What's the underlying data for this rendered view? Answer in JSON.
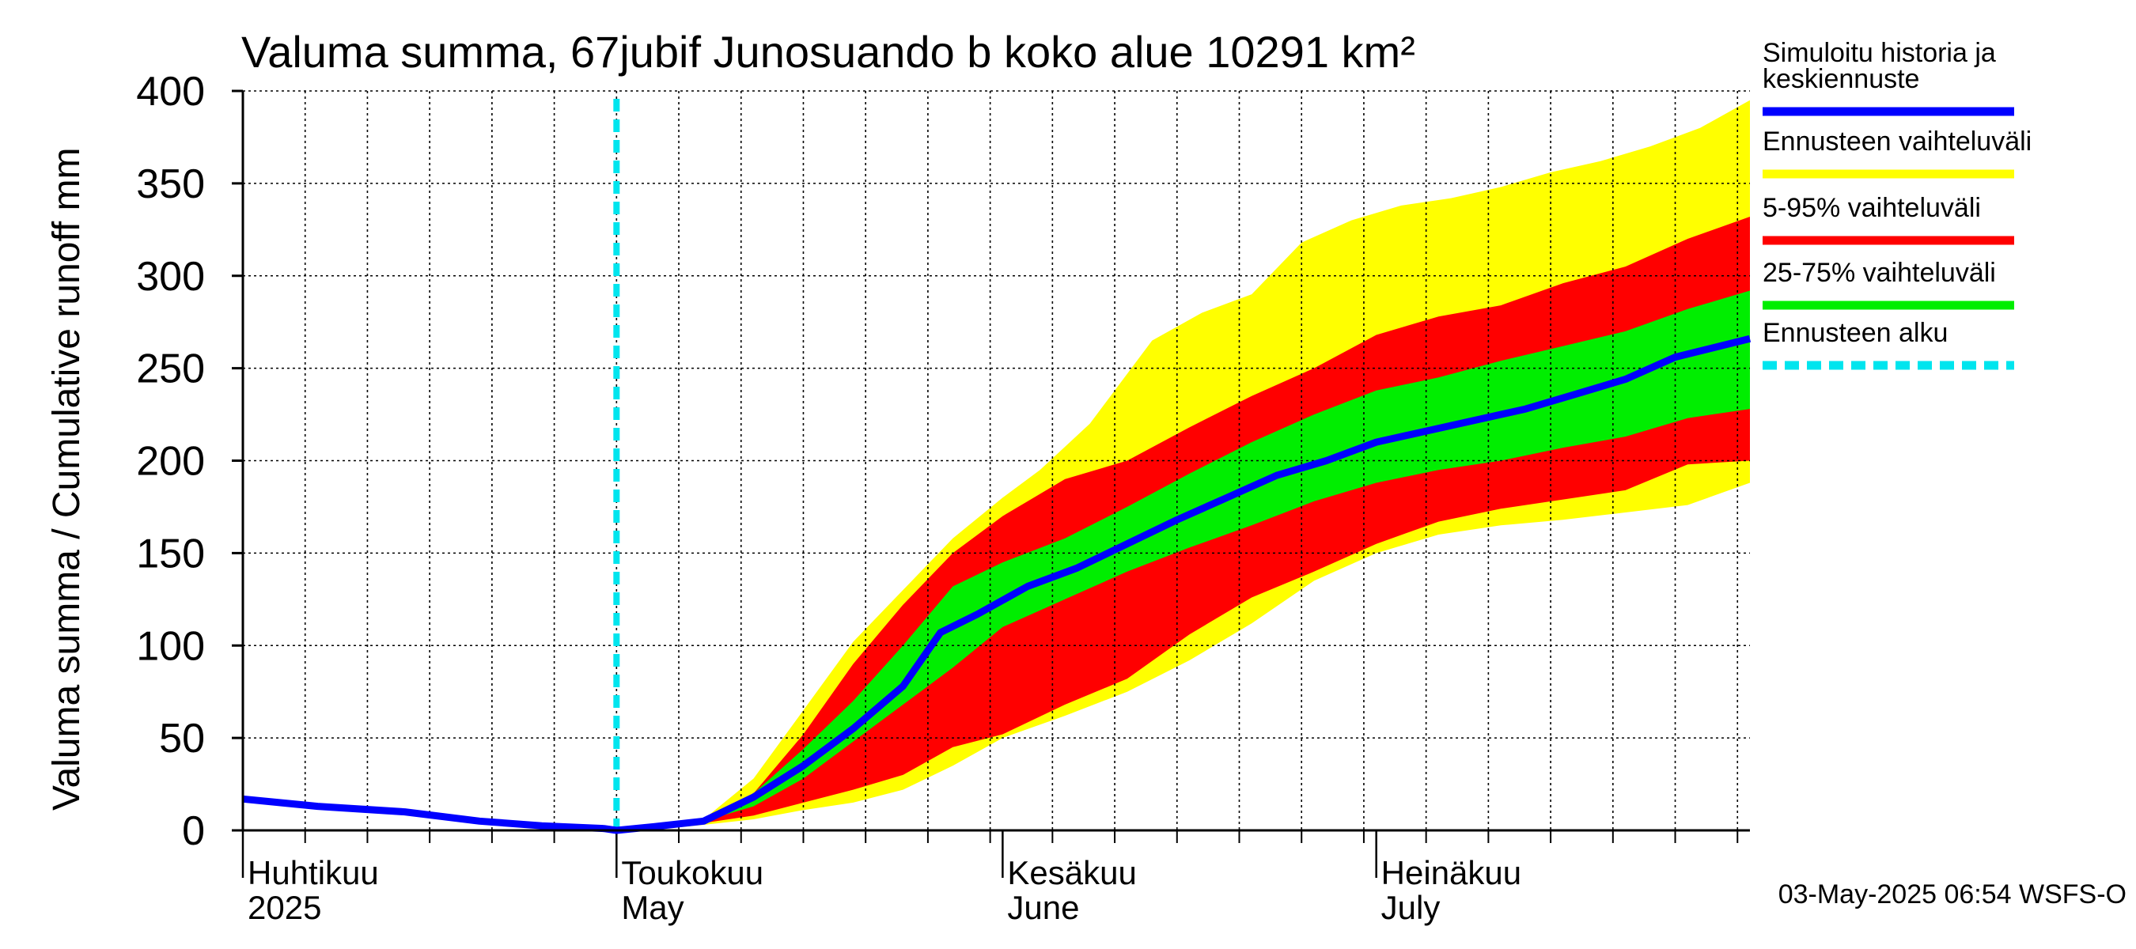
{
  "chart_data": {
    "type": "area",
    "title": "Valuma summa, 67jubif Junosuando b koko alue 10291 km²",
    "ylabel": "Valuma summa / Cumulative runoff    mm",
    "ylim": [
      0,
      400
    ],
    "yticks": [
      0,
      50,
      100,
      150,
      200,
      250,
      300,
      350,
      400
    ],
    "xlim": [
      "2025-04-01",
      "2025-07-31"
    ],
    "month_labels": [
      {
        "line1": "Huhtikuu",
        "line2": "2025",
        "date": "2025-04-01"
      },
      {
        "line1": "Toukokuu",
        "line2": "May",
        "date": "2025-05-01"
      },
      {
        "line1": "Kesäkuu",
        "line2": "June",
        "date": "2025-06-01"
      },
      {
        "line1": "Heinäkuu",
        "line2": "July",
        "date": "2025-07-01"
      }
    ],
    "forecast_start": "2025-05-01",
    "grid": true,
    "legend_position": "right",
    "legend": [
      {
        "label_lines": [
          "Simuloitu historia ja",
          "keskiennuste"
        ],
        "color": "#0000ff",
        "style": "solid"
      },
      {
        "label_lines": [
          "Ennusteen vaihteluväli"
        ],
        "color": "#ffff00",
        "style": "solid"
      },
      {
        "label_lines": [
          "5-95% vaihteluväli"
        ],
        "color": "#ff0000",
        "style": "solid"
      },
      {
        "label_lines": [
          "25-75% vaihteluväli"
        ],
        "color": "#00ee00",
        "style": "solid"
      },
      {
        "label_lines": [
          "Ennusteen alku"
        ],
        "color": "#00e5ee",
        "style": "dashed"
      }
    ],
    "series": [
      {
        "name": "Simuloitu historia ja keskiennuste",
        "color": "#0000ff",
        "x": [
          "2025-04-01",
          "2025-04-07",
          "2025-04-14",
          "2025-04-20",
          "2025-04-25",
          "2025-04-30",
          "2025-05-01",
          "2025-05-04",
          "2025-05-08",
          "2025-05-12",
          "2025-05-16",
          "2025-05-20",
          "2025-05-24",
          "2025-05-27",
          "2025-05-30",
          "2025-06-03",
          "2025-06-07",
          "2025-06-11",
          "2025-06-15",
          "2025-06-19",
          "2025-06-23",
          "2025-06-27",
          "2025-07-01",
          "2025-07-05",
          "2025-07-09",
          "2025-07-13",
          "2025-07-17",
          "2025-07-21",
          "2025-07-25",
          "2025-07-31"
        ],
        "y": [
          17,
          13,
          10,
          5,
          2.5,
          1,
          0,
          2,
          5,
          18,
          35,
          55,
          78,
          107,
          117,
          132,
          142,
          155,
          168,
          180,
          192,
          200,
          210,
          216,
          222,
          228,
          236,
          244,
          256,
          266
        ]
      },
      {
        "name": "Ennusteen vaihteluväli (max)",
        "color": "#ffff00",
        "x": [
          "2025-05-01",
          "2025-05-05",
          "2025-05-08",
          "2025-05-12",
          "2025-05-16",
          "2025-05-20",
          "2025-05-24",
          "2025-05-28",
          "2025-06-01",
          "2025-06-04",
          "2025-06-08",
          "2025-06-13",
          "2025-06-17",
          "2025-06-21",
          "2025-06-25",
          "2025-06-29",
          "2025-07-03",
          "2025-07-07",
          "2025-07-11",
          "2025-07-15",
          "2025-07-19",
          "2025-07-23",
          "2025-07-27",
          "2025-07-31"
        ],
        "y": [
          0,
          2,
          6,
          28,
          65,
          102,
          130,
          158,
          180,
          195,
          220,
          265,
          280,
          290,
          318,
          330,
          338,
          342,
          348,
          356,
          362,
          370,
          380,
          395
        ]
      },
      {
        "name": "5-95% vaihteluväli (95%)",
        "color": "#ff0000",
        "x": [
          "2025-05-01",
          "2025-05-05",
          "2025-05-08",
          "2025-05-12",
          "2025-05-16",
          "2025-05-20",
          "2025-05-24",
          "2025-05-28",
          "2025-06-01",
          "2025-06-06",
          "2025-06-11",
          "2025-06-16",
          "2025-06-21",
          "2025-06-26",
          "2025-07-01",
          "2025-07-06",
          "2025-07-11",
          "2025-07-16",
          "2025-07-21",
          "2025-07-26",
          "2025-07-31"
        ],
        "y": [
          0,
          2,
          5,
          20,
          52,
          90,
          122,
          150,
          170,
          190,
          200,
          218,
          235,
          250,
          268,
          278,
          284,
          296,
          305,
          320,
          332
        ]
      },
      {
        "name": "25-75% vaihteluväli (75%)",
        "color": "#00ee00",
        "x": [
          "2025-05-01",
          "2025-05-05",
          "2025-05-08",
          "2025-05-12",
          "2025-05-16",
          "2025-05-20",
          "2025-05-24",
          "2025-05-28",
          "2025-06-01",
          "2025-06-06",
          "2025-06-11",
          "2025-06-16",
          "2025-06-21",
          "2025-06-26",
          "2025-07-01",
          "2025-07-06",
          "2025-07-11",
          "2025-07-16",
          "2025-07-21",
          "2025-07-26",
          "2025-07-31"
        ],
        "y": [
          0,
          2,
          5,
          20,
          44,
          70,
          100,
          132,
          145,
          158,
          175,
          193,
          210,
          225,
          238,
          245,
          254,
          262,
          270,
          282,
          292
        ]
      },
      {
        "name": "25-75% vaihteluväli (25%)",
        "color": "#00ee00",
        "x": [
          "2025-05-01",
          "2025-05-05",
          "2025-05-08",
          "2025-05-12",
          "2025-05-16",
          "2025-05-20",
          "2025-05-24",
          "2025-05-28",
          "2025-06-01",
          "2025-06-06",
          "2025-06-11",
          "2025-06-16",
          "2025-06-21",
          "2025-06-26",
          "2025-07-01",
          "2025-07-06",
          "2025-07-11",
          "2025-07-16",
          "2025-07-21",
          "2025-07-26",
          "2025-07-31"
        ],
        "y": [
          0,
          2,
          5,
          13,
          28,
          48,
          68,
          88,
          110,
          125,
          140,
          153,
          165,
          178,
          188,
          195,
          200,
          207,
          213,
          223,
          228
        ]
      },
      {
        "name": "5-95% vaihteluväli (5%)",
        "color": "#ff0000",
        "x": [
          "2025-05-01",
          "2025-05-05",
          "2025-05-08",
          "2025-05-12",
          "2025-05-16",
          "2025-05-20",
          "2025-05-24",
          "2025-05-28",
          "2025-06-01",
          "2025-06-06",
          "2025-06-11",
          "2025-06-16",
          "2025-06-21",
          "2025-06-26",
          "2025-07-01",
          "2025-07-06",
          "2025-07-11",
          "2025-07-16",
          "2025-07-21",
          "2025-07-26",
          "2025-07-31"
        ],
        "y": [
          0,
          1.5,
          4,
          8,
          15,
          22,
          30,
          45,
          52,
          68,
          82,
          106,
          126,
          140,
          155,
          167,
          174,
          179,
          184,
          198,
          200
        ]
      },
      {
        "name": "Ennusteen vaihteluväli (min)",
        "color": "#ffff00",
        "x": [
          "2025-05-01",
          "2025-05-05",
          "2025-05-08",
          "2025-05-12",
          "2025-05-16",
          "2025-05-20",
          "2025-05-24",
          "2025-05-28",
          "2025-06-01",
          "2025-06-06",
          "2025-06-11",
          "2025-06-16",
          "2025-06-21",
          "2025-06-26",
          "2025-07-01",
          "2025-07-06",
          "2025-07-11",
          "2025-07-16",
          "2025-07-21",
          "2025-07-26",
          "2025-07-31"
        ],
        "y": [
          0,
          1,
          3,
          6,
          11,
          15,
          22,
          35,
          50,
          62,
          75,
          92,
          112,
          135,
          150,
          160,
          165,
          168,
          172,
          176,
          188
        ]
      }
    ]
  },
  "footer": "03-May-2025 06:54 WSFS-O"
}
